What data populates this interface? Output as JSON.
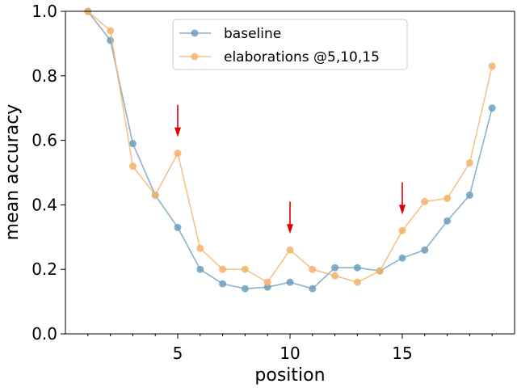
{
  "chart_data": {
    "type": "line",
    "xlabel": "position",
    "ylabel": "mean accuracy",
    "xlim": [
      0,
      20
    ],
    "ylim": [
      0.0,
      1.0
    ],
    "x_ticks": [
      5,
      10,
      15
    ],
    "y_ticks": [
      0.0,
      0.2,
      0.4,
      0.6,
      0.8,
      1.0
    ],
    "grid": false,
    "legend_position": "top-center",
    "x": [
      1,
      2,
      3,
      4,
      5,
      6,
      7,
      8,
      9,
      10,
      11,
      12,
      13,
      14,
      15,
      16,
      17,
      18,
      19
    ],
    "series": [
      {
        "name": "baseline",
        "color": "#6f9fbe",
        "values": [
          1.0,
          0.91,
          0.59,
          0.43,
          0.33,
          0.2,
          0.155,
          0.14,
          0.145,
          0.16,
          0.14,
          0.205,
          0.205,
          0.195,
          0.235,
          0.26,
          0.35,
          0.43,
          0.7
        ]
      },
      {
        "name": "elaborations @5,10,15",
        "color": "#f5b36a",
        "values": [
          1.0,
          0.94,
          0.52,
          0.43,
          0.56,
          0.265,
          0.2,
          0.2,
          0.16,
          0.26,
          0.2,
          0.18,
          0.16,
          0.195,
          0.32,
          0.41,
          0.42,
          0.53,
          0.83
        ]
      }
    ],
    "annotations": [
      {
        "type": "arrow",
        "x": 5,
        "y_from": 0.71,
        "y_to": 0.61,
        "color": "#e00000"
      },
      {
        "type": "arrow",
        "x": 10,
        "y_from": 0.41,
        "y_to": 0.31,
        "color": "#e00000"
      },
      {
        "type": "arrow",
        "x": 15,
        "y_from": 0.47,
        "y_to": 0.37,
        "color": "#e00000"
      }
    ]
  }
}
